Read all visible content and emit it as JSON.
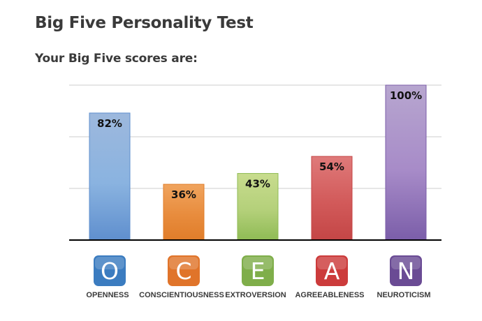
{
  "page": {
    "title": "Big Five Personality Test",
    "subtitle": "Your Big Five scores are:"
  },
  "chart_data": {
    "type": "bar",
    "categories": [
      "OPENNESS",
      "CONSCIENTIOUSNESS",
      "EXTROVERSION",
      "AGREEABLENESS",
      "NEUROTICISM"
    ],
    "badges": [
      "O",
      "C",
      "E",
      "A",
      "N"
    ],
    "values": [
      82,
      36,
      43,
      54,
      100
    ],
    "value_labels": [
      "82%",
      "36%",
      "43%",
      "54%",
      "100%"
    ],
    "ylim": [
      0,
      100
    ],
    "grid": true,
    "colors": {
      "openness": [
        "#9db8dd",
        "#8ab3e0",
        "#5f8fce"
      ],
      "conscientiousness": [
        "#f0a45e",
        "#e88c3d",
        "#e07d2a"
      ],
      "extroversion": [
        "#c8dc8e",
        "#b4d07a",
        "#8fbb55"
      ],
      "agreeableness": [
        "#df7a7a",
        "#d25a5a",
        "#c44646"
      ],
      "neuroticism": [
        "#b7a6cf",
        "#a78bc8",
        "#7b5ea9"
      ],
      "badges": [
        "#3b7cc0",
        "#e0742a",
        "#7fae4a",
        "#cc3b3b",
        "#6a4b94"
      ]
    }
  }
}
